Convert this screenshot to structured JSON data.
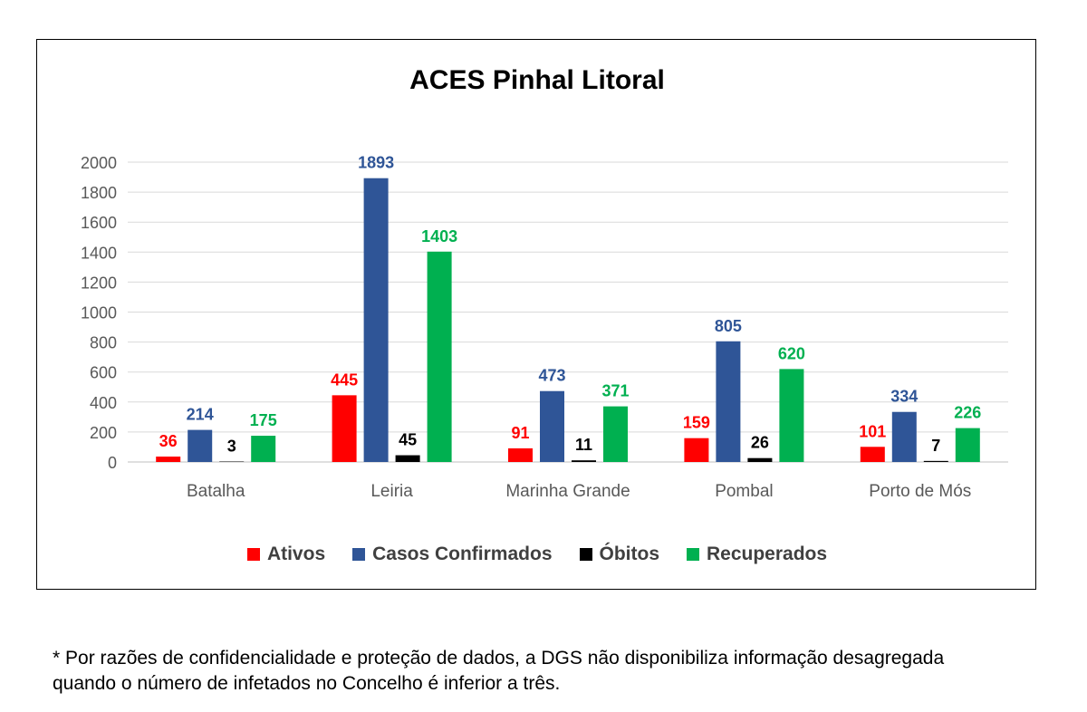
{
  "chart_data": {
    "type": "bar",
    "title": "ACES Pinhal Litoral",
    "categories": [
      "Batalha",
      "Leiria",
      "Marinha Grande",
      "Pombal",
      "Porto de Mós"
    ],
    "series": [
      {
        "name": "Ativos",
        "color": "#ff0000",
        "values": [
          36,
          445,
          91,
          159,
          101
        ]
      },
      {
        "name": "Casos Confirmados",
        "color": "#2f5597",
        "values": [
          214,
          1893,
          473,
          805,
          334
        ]
      },
      {
        "name": "Óbitos",
        "color": "#000000",
        "values": [
          3,
          45,
          11,
          26,
          7
        ]
      },
      {
        "name": "Recuperados",
        "color": "#00b050",
        "values": [
          175,
          1403,
          371,
          620,
          226
        ]
      }
    ],
    "ylim": [
      0,
      2000
    ],
    "yticks": [
      0,
      200,
      400,
      600,
      800,
      1000,
      1200,
      1400,
      1600,
      1800,
      2000
    ],
    "grid": true,
    "legend_position": "bottom"
  },
  "footnote": {
    "line1": "* Por razões de confidencialidade e proteção de dados, a DGS não disponibiliza informação desagregada",
    "line2": "quando o número de infetados no Concelho é inferior a três."
  }
}
